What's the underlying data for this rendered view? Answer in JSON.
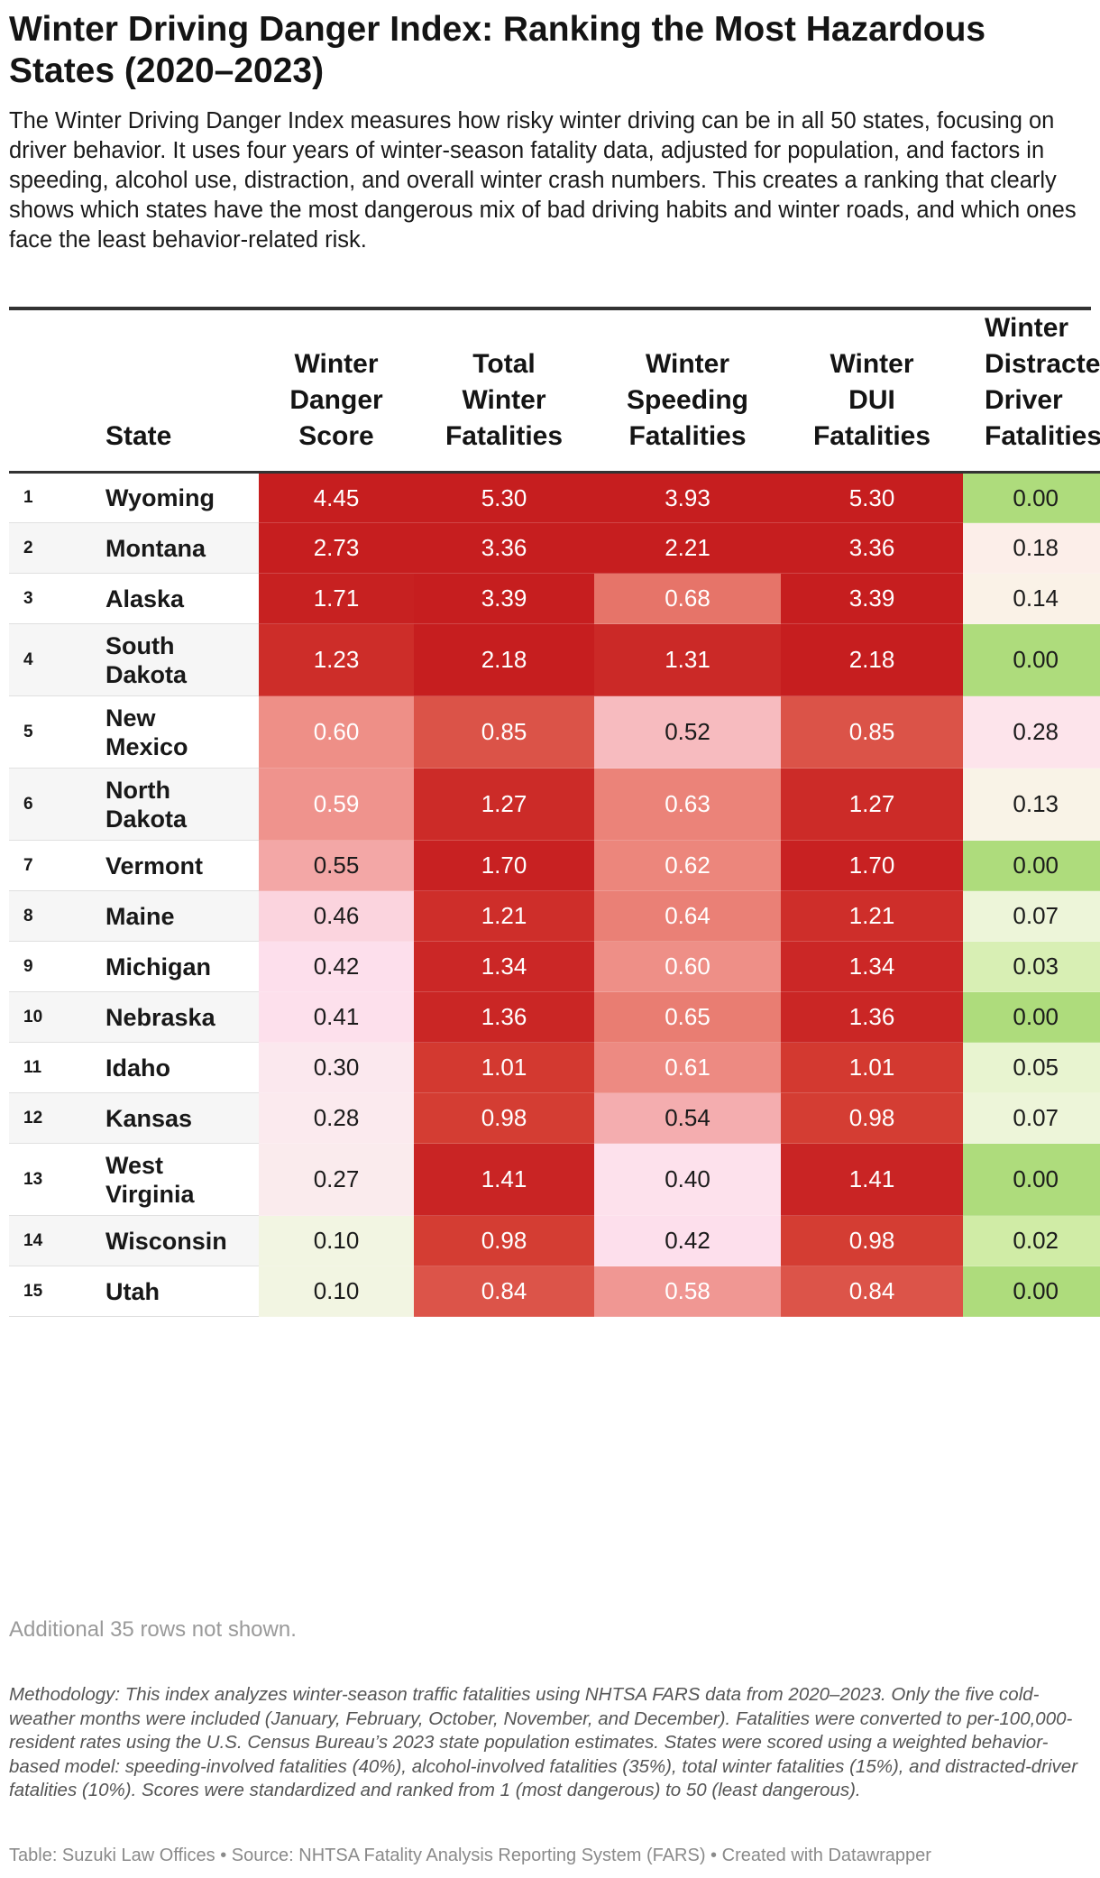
{
  "title": "Winter Driving Danger Index: Ranking the Most Hazardous States (2020–2023)",
  "description": "The Winter Driving Danger Index measures how risky winter driving can be in all 50 states, focusing on driver behavior. It uses four years of winter-season fatality data, adjusted for population, and factors in speeding, alcohol use, distraction, and overall winter crash numbers. This creates a ranking that clearly shows which states have the most dangerous mix of bad driving habits and winter roads, and which ones face the least behavior-related risk.",
  "table": {
    "headers": {
      "state": "State",
      "score": "Winter\nDanger\nScore",
      "total": "Total\nWinter\nFatalities",
      "speeding": "Winter\nSpeeding\nFatalities",
      "dui": "Winter\nDUI\nFatalities",
      "distracted": "Winter\nDistracted\nDriver\nFatalities"
    }
  },
  "chart_data": {
    "type": "table",
    "title": "Winter Driving Danger Index: Ranking the Most Hazardous States (2020–2023)",
    "columns": [
      "Rank",
      "State",
      "Winter Danger Score",
      "Total Winter Fatalities",
      "Winter Speeding Fatalities",
      "Winter DUI Fatalities",
      "Winter Distracted Driver Fatalities"
    ],
    "rows": [
      {
        "rank": "1",
        "state": "Wyoming",
        "score": "4.45",
        "total": "5.30",
        "speeding": "3.93",
        "dui": "5.30",
        "distracted": "0.00"
      },
      {
        "rank": "2",
        "state": "Montana",
        "score": "2.73",
        "total": "3.36",
        "speeding": "2.21",
        "dui": "3.36",
        "distracted": "0.18"
      },
      {
        "rank": "3",
        "state": "Alaska",
        "score": "1.71",
        "total": "3.39",
        "speeding": "0.68",
        "dui": "3.39",
        "distracted": "0.14"
      },
      {
        "rank": "4",
        "state": "South Dakota",
        "score": "1.23",
        "total": "2.18",
        "speeding": "1.31",
        "dui": "2.18",
        "distracted": "0.00"
      },
      {
        "rank": "5",
        "state": "New Mexico",
        "score": "0.60",
        "total": "0.85",
        "speeding": "0.52",
        "dui": "0.85",
        "distracted": "0.28"
      },
      {
        "rank": "6",
        "state": "North Dakota",
        "score": "0.59",
        "total": "1.27",
        "speeding": "0.63",
        "dui": "1.27",
        "distracted": "0.13"
      },
      {
        "rank": "7",
        "state": "Vermont",
        "score": "0.55",
        "total": "1.70",
        "speeding": "0.62",
        "dui": "1.70",
        "distracted": "0.00"
      },
      {
        "rank": "8",
        "state": "Maine",
        "score": "0.46",
        "total": "1.21",
        "speeding": "0.64",
        "dui": "1.21",
        "distracted": "0.07"
      },
      {
        "rank": "9",
        "state": "Michigan",
        "score": "0.42",
        "total": "1.34",
        "speeding": "0.60",
        "dui": "1.34",
        "distracted": "0.03"
      },
      {
        "rank": "10",
        "state": "Nebraska",
        "score": "0.41",
        "total": "1.36",
        "speeding": "0.65",
        "dui": "1.36",
        "distracted": "0.00"
      },
      {
        "rank": "11",
        "state": "Idaho",
        "score": "0.30",
        "total": "1.01",
        "speeding": "0.61",
        "dui": "1.01",
        "distracted": "0.05"
      },
      {
        "rank": "12",
        "state": "Kansas",
        "score": "0.28",
        "total": "0.98",
        "speeding": "0.54",
        "dui": "0.98",
        "distracted": "0.07"
      },
      {
        "rank": "13",
        "state": "West Virginia",
        "score": "0.27",
        "total": "1.41",
        "speeding": "0.40",
        "dui": "1.41",
        "distracted": "0.00"
      },
      {
        "rank": "14",
        "state": "Wisconsin",
        "score": "0.10",
        "total": "0.98",
        "speeding": "0.42",
        "dui": "0.98",
        "distracted": "0.02"
      },
      {
        "rank": "15",
        "state": "Utah",
        "score": "0.10",
        "total": "0.84",
        "speeding": "0.58",
        "dui": "0.84",
        "distracted": "0.00"
      }
    ]
  },
  "not_shown": "Additional 35 rows not shown.",
  "methodology": "Methodology: This index analyzes winter-season traffic fatalities using NHTSA FARS data from 2020–2023. Only the five cold-weather months were included (January, February, October, November, and December). Fatalities were converted to per-100,000-resident rates using the U.S. Census Bureau’s 2023 state population estimates. States were scored using a weighted behavior-based model: speeding-involved fatalities (40%), alcohol-involved fatalities (35%), total winter fatalities (15%), and distracted-driver fatalities (10%). Scores were standardized and ranked from 1 (most dangerous) to 50 (least dangerous).",
  "footer": {
    "table_label": "Table: Suzuki Law Offices",
    "sep": " • ",
    "source": "Source: NHTSA Fatality Analysis Reporting System (FARS)",
    "created": "Created with Datawrapper"
  }
}
